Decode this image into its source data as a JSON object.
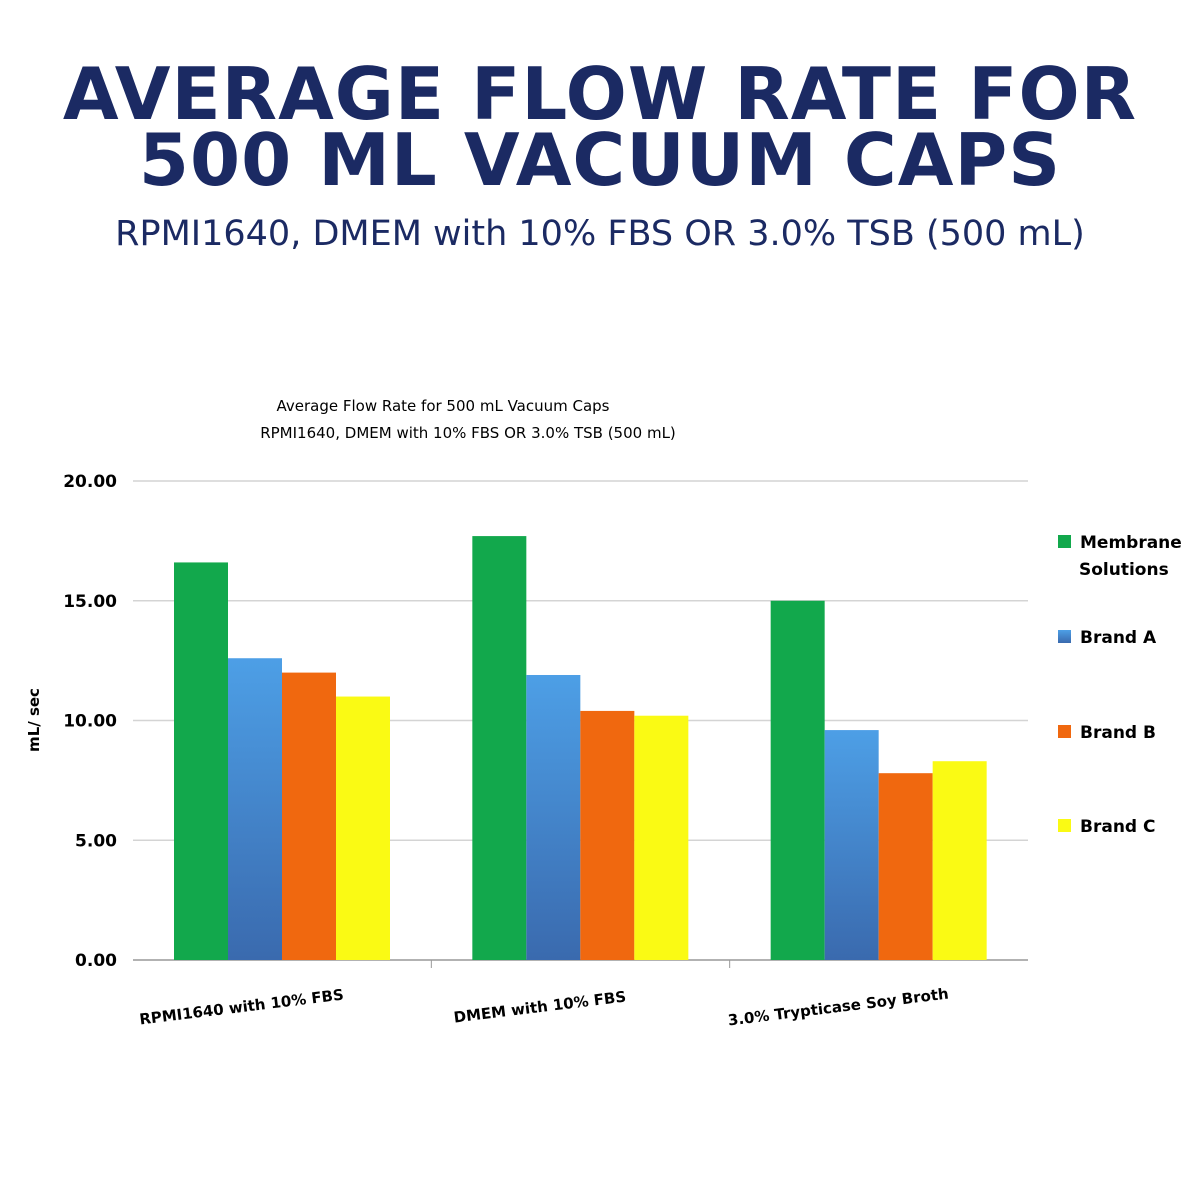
{
  "header": {
    "title_line1": "AVERAGE FLOW RATE FOR",
    "title_line2": "500 ML VACUUM CAPS",
    "subtitle": "RPMI1640, DMEM with 10% FBS OR 3.0% TSB (500 mL)"
  },
  "chart_data": {
    "type": "bar",
    "title": "Average Flow Rate for 500 mL Vacuum Caps",
    "subtitle": "RPMI1640, DMEM with 10% FBS OR 3.0% TSB (500 mL)",
    "xlabel": "",
    "ylabel": "mL/ sec",
    "ylim": [
      0,
      20
    ],
    "yticks": [
      "0.00",
      "5.00",
      "10.00",
      "15.00",
      "20.00"
    ],
    "grid": true,
    "legend_position": "right",
    "categories": [
      "RPMI1640 with 10% FBS",
      "DMEM with 10% FBS",
      "3.0% Trypticase Soy Broth"
    ],
    "series": [
      {
        "name": "Membrane Solutions",
        "name_lines": [
          "Membrane",
          "Solutions"
        ],
        "color": "#12a84c",
        "values": [
          16.6,
          17.7,
          15.0
        ]
      },
      {
        "name": "Brand A",
        "name_lines": [
          "Brand A"
        ],
        "color": "#4a96dc",
        "values": [
          12.6,
          11.9,
          9.6
        ]
      },
      {
        "name": "Brand B",
        "name_lines": [
          "Brand B"
        ],
        "color": "#f0680f",
        "values": [
          12.0,
          10.4,
          7.8
        ]
      },
      {
        "name": "Brand C",
        "name_lines": [
          "Brand C"
        ],
        "color": "#fafa14",
        "values": [
          11.0,
          10.2,
          8.3
        ]
      }
    ]
  }
}
